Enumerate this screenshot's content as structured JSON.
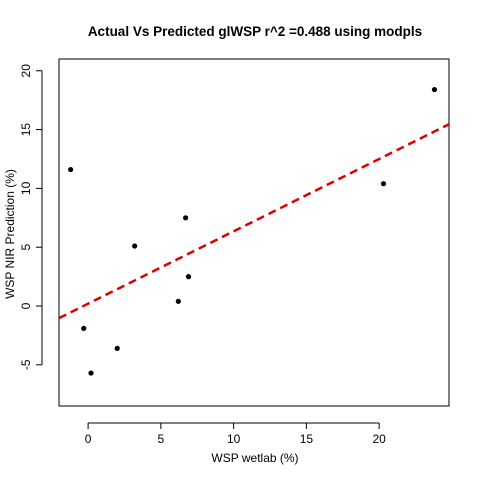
{
  "chart_data": {
    "type": "scatter",
    "title": "Actual Vs Predicted glWSP r^2 =0.488 using modpls",
    "xlabel": "WSP wetlab (%)",
    "ylabel": "WSP NIR Prediction (%)",
    "xlim": [
      -2.0,
      24.8
    ],
    "ylim": [
      -8.5,
      21.0
    ],
    "x_ticks": [
      0,
      5,
      10,
      15,
      20
    ],
    "x_tick_labels": [
      "0",
      "5",
      "10",
      "15",
      "20"
    ],
    "y_ticks": [
      -5,
      0,
      5,
      10,
      15,
      20
    ],
    "y_tick_labels": [
      "-5",
      "0",
      "5",
      "10",
      "15",
      "20"
    ],
    "grid": false,
    "legend": "none",
    "points": [
      {
        "x": -1.2,
        "y": 11.6
      },
      {
        "x": -0.3,
        "y": -1.9
      },
      {
        "x": 0.2,
        "y": -5.7
      },
      {
        "x": 2.0,
        "y": -3.6
      },
      {
        "x": 3.2,
        "y": 5.1
      },
      {
        "x": 6.2,
        "y": 0.4
      },
      {
        "x": 6.7,
        "y": 7.5
      },
      {
        "x": 6.9,
        "y": 2.5
      },
      {
        "x": 20.3,
        "y": 10.4
      },
      {
        "x": 23.8,
        "y": 18.4
      }
    ],
    "fit_line": {
      "intercept": 0.2,
      "slope": 0.615
    },
    "colors": {
      "points": "#000000",
      "fit_line": "#dd0000"
    }
  }
}
